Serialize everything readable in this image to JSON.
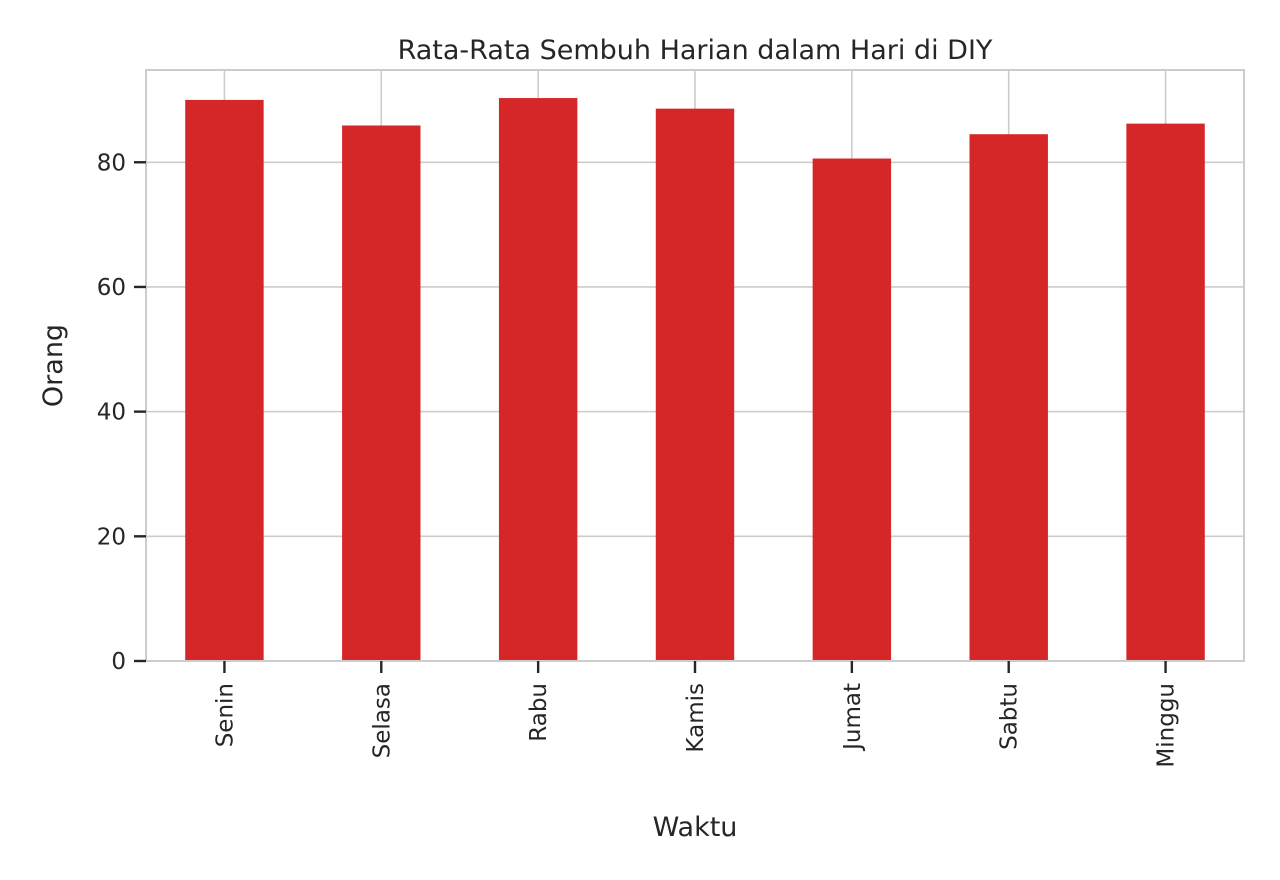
{
  "chart_data": {
    "type": "bar",
    "title": "Rata-Rata Sembuh Harian dalam Hari di DIY",
    "xlabel": "Waktu",
    "ylabel": "Orang",
    "categories": [
      "Senin",
      "Selasa",
      "Rabu",
      "Kamis",
      "Jumat",
      "Sabtu",
      "Minggu"
    ],
    "values": [
      90.0,
      85.9,
      90.3,
      88.6,
      80.6,
      84.5,
      86.2
    ],
    "ylim": [
      0,
      94.8
    ],
    "yticks": [
      0,
      20,
      40,
      60,
      80
    ],
    "ytick_labels": [
      "0",
      "20",
      "40",
      "60",
      "80"
    ],
    "grid": true,
    "bar_color": "#d62728",
    "grid_color": "#cccccc"
  }
}
